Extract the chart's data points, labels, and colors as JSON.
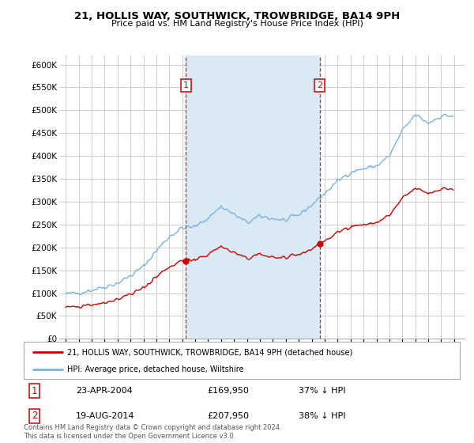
{
  "title": "21, HOLLIS WAY, SOUTHWICK, TROWBRIDGE, BA14 9PH",
  "subtitle": "Price paid vs. HM Land Registry's House Price Index (HPI)",
  "legend_line1": "21, HOLLIS WAY, SOUTHWICK, TROWBRIDGE, BA14 9PH (detached house)",
  "legend_line2": "HPI: Average price, detached house, Wiltshire",
  "transaction1_label": "1",
  "transaction1_date": "23-APR-2004",
  "transaction1_price": "£169,950",
  "transaction1_hpi": "37% ↓ HPI",
  "transaction2_label": "2",
  "transaction2_date": "19-AUG-2014",
  "transaction2_price": "£207,950",
  "transaction2_hpi": "38% ↓ HPI",
  "footnote": "Contains HM Land Registry data © Crown copyright and database right 2024.\nThis data is licensed under the Open Government Licence v3.0.",
  "hpi_color": "#7bb3d9",
  "price_color": "#cc0000",
  "shade_color": "#daeaf5",
  "vline_color": "#cc0000",
  "background_color": "#ffffff",
  "grid_color": "#cccccc",
  "ylim": [
    0,
    620000
  ],
  "yticks": [
    0,
    50000,
    100000,
    150000,
    200000,
    250000,
    300000,
    350000,
    400000,
    450000,
    500000,
    550000,
    600000
  ],
  "transaction1_year": 2004.29,
  "transaction1_y": 169950,
  "transaction2_year": 2014.62,
  "transaction2_y": 207950,
  "xmin": 1994.5,
  "xmax": 2025.8
}
